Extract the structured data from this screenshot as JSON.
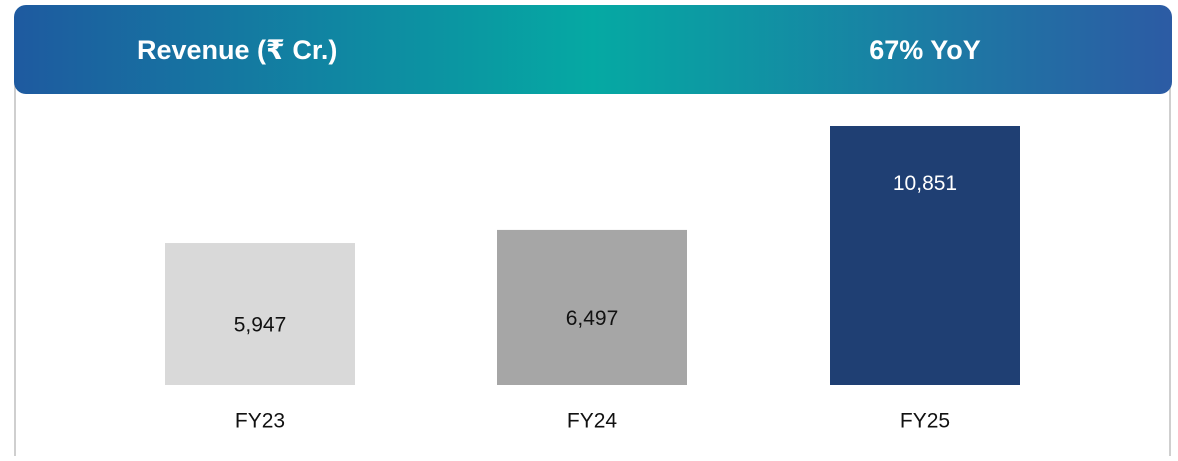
{
  "chart_data": {
    "type": "bar",
    "title": "Revenue (₹ Cr.)",
    "annotation": "67% YoY",
    "categories": [
      "FY23",
      "FY24",
      "FY25"
    ],
    "values": [
      5947,
      6497,
      10851
    ],
    "value_labels": [
      "5,947",
      "6,497",
      "10,851"
    ],
    "colors": [
      "#d9d9d9",
      "#a6a6a6",
      "#1f3f73"
    ]
  }
}
